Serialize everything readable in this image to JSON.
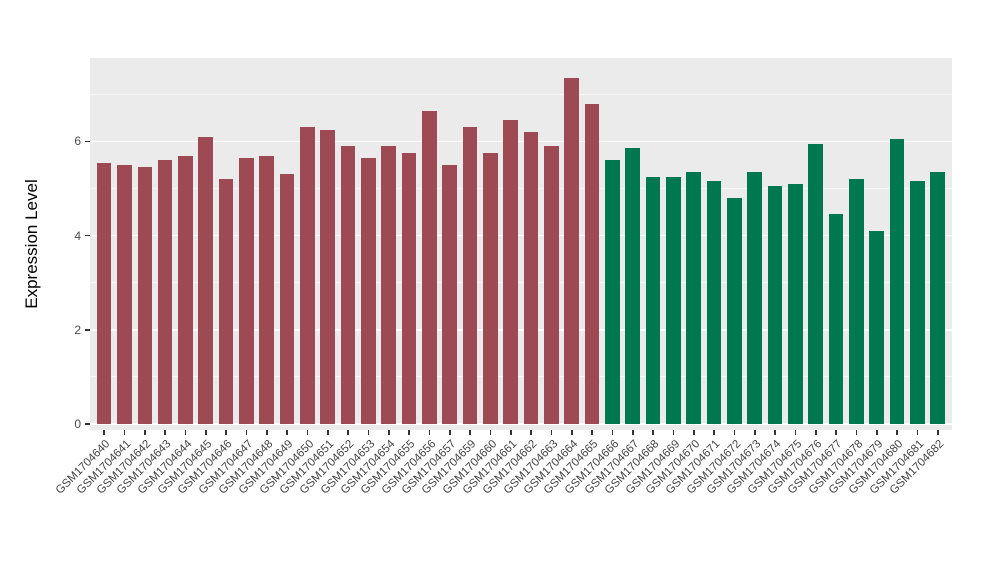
{
  "figure": {
    "background": "#ffffff"
  },
  "chart_data": {
    "type": "bar",
    "title": "",
    "xlabel": "",
    "ylabel": "Expression Level",
    "ylim": [
      0,
      7.6
    ],
    "yticks": [
      0,
      2,
      4,
      6
    ],
    "ytick_labels": [
      "0",
      "2",
      "4",
      "6"
    ],
    "yticks_minor": [
      1,
      3,
      5,
      7
    ],
    "plot_background": "#ebebeb",
    "major_grid_color": "#ffffff",
    "minor_grid_color": "#f6f6f6",
    "grid": "on",
    "legend_position": "none",
    "group_colors": {
      "groupA": "#9e4a54",
      "groupB": "#00784f"
    },
    "categories": [
      "GSM1704640",
      "GSM1704641",
      "GSM1704642",
      "GSM1704643",
      "GSM1704644",
      "GSM1704645",
      "GSM1704646",
      "GSM1704647",
      "GSM1704648",
      "GSM1704649",
      "GSM1704650",
      "GSM1704651",
      "GSM1704652",
      "GSM1704653",
      "GSM1704654",
      "GSM1704655",
      "GSM1704656",
      "GSM1704657",
      "GSM1704659",
      "GSM1704660",
      "GSM1704661",
      "GSM1704662",
      "GSM1704663",
      "GSM1704664",
      "GSM1704665",
      "GSM1704666",
      "GSM1704667",
      "GSM1704668",
      "GSM1704669",
      "GSM1704670",
      "GSM1704671",
      "GSM1704672",
      "GSM1704673",
      "GSM1704674",
      "GSM1704675",
      "GSM1704676",
      "GSM1704677",
      "GSM1704678",
      "GSM1704679",
      "GSM1704680",
      "GSM1704681",
      "GSM1704682"
    ],
    "values": [
      5.55,
      5.5,
      5.45,
      5.6,
      5.7,
      6.1,
      5.2,
      5.65,
      5.7,
      5.3,
      6.3,
      6.25,
      5.9,
      5.65,
      5.9,
      5.75,
      6.65,
      5.5,
      6.3,
      5.75,
      6.45,
      6.2,
      5.9,
      7.35,
      6.8,
      5.6,
      5.85,
      5.25,
      5.25,
      5.35,
      5.15,
      4.8,
      5.35,
      5.05,
      5.1,
      5.95,
      4.45,
      5.2,
      4.1,
      6.05,
      5.15,
      5.35
    ],
    "groups": [
      "groupA",
      "groupA",
      "groupA",
      "groupA",
      "groupA",
      "groupA",
      "groupA",
      "groupA",
      "groupA",
      "groupA",
      "groupA",
      "groupA",
      "groupA",
      "groupA",
      "groupA",
      "groupA",
      "groupA",
      "groupA",
      "groupA",
      "groupA",
      "groupA",
      "groupA",
      "groupA",
      "groupA",
      "groupA",
      "groupB",
      "groupB",
      "groupB",
      "groupB",
      "groupB",
      "groupB",
      "groupB",
      "groupB",
      "groupB",
      "groupB",
      "groupB",
      "groupB",
      "groupB",
      "groupB",
      "groupB",
      "groupB",
      "groupB"
    ]
  }
}
